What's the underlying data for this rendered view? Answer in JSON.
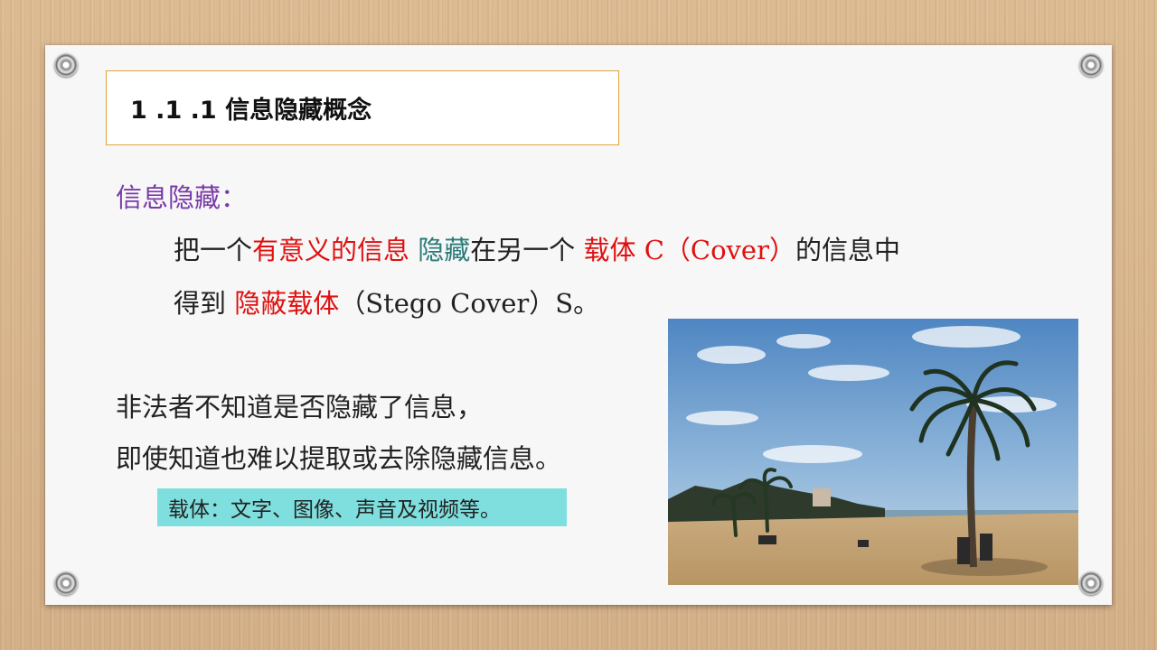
{
  "slide": {
    "title": "1 .1 .1 信息隐藏概念",
    "heading": "信息隐藏：",
    "line1": {
      "p1": "把一个",
      "p2": "有意义的信息",
      "p3": " ",
      "p4": "隐藏",
      "p5": "在另一个 ",
      "p6": "载体 C（Cover）",
      "p7": "的信息中"
    },
    "line2": {
      "p1": "得到 ",
      "p2": "隐蔽载体",
      "p3": "（Stego Cover）S。"
    },
    "line3": "非法者不知道是否隐藏了信息，",
    "line4": "即使知道也难以提取或去除隐藏信息。",
    "note": "载体：文字、图像、声音及视频等。"
  },
  "colors": {
    "background": "#d6b48c",
    "card": "#f7f7f7",
    "title_border": "#e0a43a",
    "heading": "#7a3aa8",
    "emphasis_red": "#e01010",
    "emphasis_teal": "#2a7a78",
    "note_highlight": "#7fdede"
  },
  "photo": {
    "subject": "beach-palm-tree-photo"
  }
}
